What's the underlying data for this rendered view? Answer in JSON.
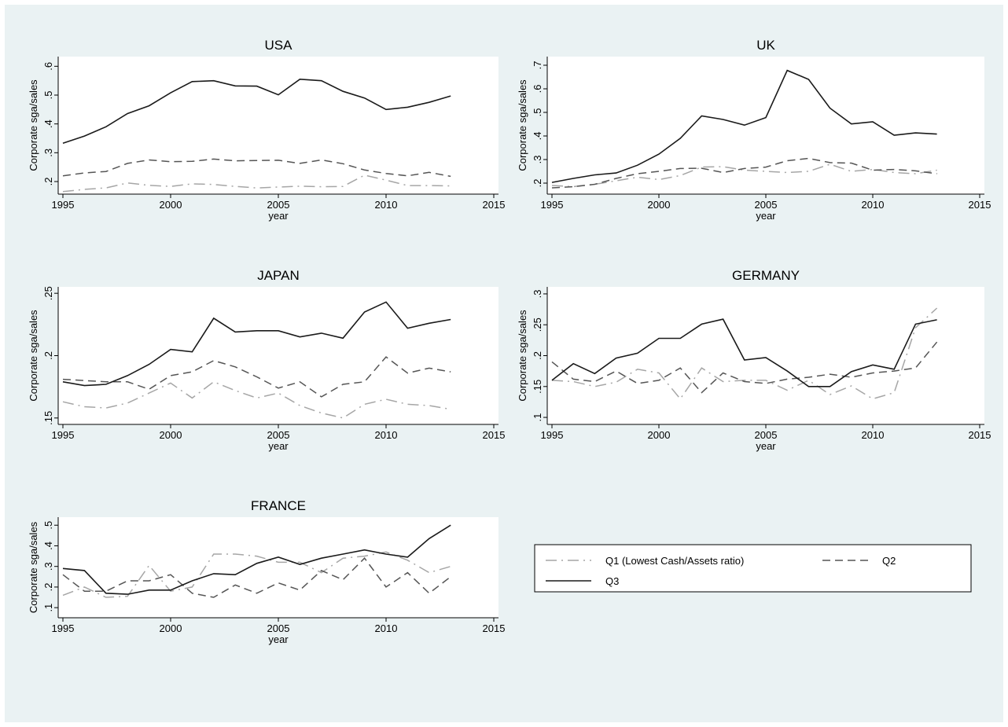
{
  "colors": {
    "background": "#eaf2f3",
    "plot_background": "#ffffff",
    "q1": "#a6a6a6",
    "q2": "#555555",
    "q3": "#1a1a1a"
  },
  "legend": {
    "placement": "bottom-right",
    "entries": [
      {
        "key": "q1",
        "label": "Q1 (Lowest Cash/Assets ratio)",
        "dash": "long-dash-dot",
        "color": "#a6a6a6"
      },
      {
        "key": "q2",
        "label": "Q2",
        "dash": "dash",
        "color": "#555555"
      },
      {
        "key": "q3",
        "label": "Q3",
        "dash": "solid",
        "color": "#1a1a1a"
      }
    ]
  },
  "chart_data": [
    {
      "type": "line",
      "title": "USA",
      "xlabel": "year",
      "ylabel": "Corporate sga/sales",
      "xlim": [
        1995,
        2015
      ],
      "xticks": [
        1995,
        2000,
        2005,
        2010,
        2015
      ],
      "ylim": [
        0.17,
        0.62
      ],
      "yticks": [
        0.2,
        0.3,
        0.4,
        0.5,
        0.6
      ],
      "ytick_labels": [
        ".2",
        ".3",
        ".4",
        ".5",
        ".6"
      ],
      "x": [
        1995,
        1996,
        1997,
        1998,
        1999,
        2000,
        2001,
        2002,
        2003,
        2004,
        2005,
        2006,
        2007,
        2008,
        2009,
        2010,
        2011,
        2012,
        2013
      ],
      "series": [
        {
          "key": "q1",
          "values": [
            0.165,
            0.173,
            0.178,
            0.195,
            0.187,
            0.183,
            0.192,
            0.19,
            0.183,
            0.178,
            0.181,
            0.184,
            0.182,
            0.183,
            0.222,
            0.205,
            0.186,
            0.186,
            0.185
          ]
        },
        {
          "key": "q2",
          "values": [
            0.22,
            0.23,
            0.235,
            0.263,
            0.275,
            0.269,
            0.27,
            0.278,
            0.272,
            0.273,
            0.274,
            0.263,
            0.275,
            0.262,
            0.24,
            0.228,
            0.22,
            0.232,
            0.218
          ]
        },
        {
          "key": "q3",
          "values": [
            0.333,
            0.358,
            0.39,
            0.436,
            0.463,
            0.508,
            0.547,
            0.55,
            0.532,
            0.531,
            0.501,
            0.555,
            0.55,
            0.513,
            0.49,
            0.45,
            0.458,
            0.475,
            0.497
          ]
        }
      ]
    },
    {
      "type": "line",
      "title": "UK",
      "xlabel": "year",
      "ylabel": "Corporate sga/sales",
      "xlim": [
        1995,
        2015
      ],
      "xticks": [
        1995,
        2000,
        2005,
        2010,
        2015
      ],
      "ylim": [
        0.17,
        0.72
      ],
      "yticks": [
        0.2,
        0.3,
        0.4,
        0.5,
        0.6,
        0.7
      ],
      "ytick_labels": [
        ".2",
        ".3",
        ".4",
        ".5",
        ".6",
        ".7"
      ],
      "x": [
        1995,
        1996,
        1997,
        1998,
        1999,
        2000,
        2001,
        2002,
        2003,
        2004,
        2005,
        2006,
        2007,
        2008,
        2009,
        2010,
        2011,
        2012,
        2013
      ],
      "series": [
        {
          "key": "q1",
          "values": [
            0.19,
            0.185,
            0.195,
            0.21,
            0.225,
            0.215,
            0.232,
            0.268,
            0.27,
            0.255,
            0.25,
            0.245,
            0.25,
            0.28,
            0.25,
            0.258,
            0.245,
            0.24,
            0.255
          ]
        },
        {
          "key": "q2",
          "values": [
            0.18,
            0.185,
            0.195,
            0.22,
            0.24,
            0.25,
            0.262,
            0.263,
            0.245,
            0.262,
            0.268,
            0.295,
            0.305,
            0.287,
            0.285,
            0.255,
            0.258,
            0.252,
            0.24
          ]
        },
        {
          "key": "q3",
          "values": [
            0.203,
            0.22,
            0.235,
            0.243,
            0.276,
            0.323,
            0.39,
            0.485,
            0.47,
            0.446,
            0.478,
            0.678,
            0.64,
            0.518,
            0.451,
            0.46,
            0.403,
            0.413,
            0.408
          ]
        }
      ]
    },
    {
      "type": "line",
      "title": "JAPAN",
      "xlabel": "year",
      "ylabel": "Corporate sga/sales",
      "xlim": [
        1995,
        2015
      ],
      "xticks": [
        1995,
        2000,
        2005,
        2010,
        2015
      ],
      "ylim": [
        0.148,
        0.252
      ],
      "yticks": [
        0.15,
        0.2,
        0.25
      ],
      "ytick_labels": [
        ".15",
        ".2",
        ".25"
      ],
      "x": [
        1995,
        1996,
        1997,
        1998,
        1999,
        2000,
        2001,
        2002,
        2003,
        2004,
        2005,
        2006,
        2007,
        2008,
        2009,
        2010,
        2011,
        2012,
        2013
      ],
      "series": [
        {
          "key": "q1",
          "values": [
            0.163,
            0.159,
            0.158,
            0.162,
            0.17,
            0.178,
            0.166,
            0.179,
            0.172,
            0.166,
            0.17,
            0.16,
            0.154,
            0.15,
            0.161,
            0.165,
            0.161,
            0.16,
            0.157
          ]
        },
        {
          "key": "q2",
          "values": [
            0.181,
            0.18,
            0.179,
            0.179,
            0.173,
            0.184,
            0.187,
            0.196,
            0.191,
            0.183,
            0.174,
            0.179,
            0.167,
            0.177,
            0.179,
            0.199,
            0.186,
            0.19,
            0.187
          ]
        },
        {
          "key": "q3",
          "values": [
            0.179,
            0.176,
            0.177,
            0.184,
            0.193,
            0.205,
            0.203,
            0.23,
            0.219,
            0.22,
            0.22,
            0.215,
            0.218,
            0.214,
            0.235,
            0.243,
            0.222,
            0.226,
            0.229
          ]
        }
      ]
    },
    {
      "type": "line",
      "title": "GERMANY",
      "xlabel": "year",
      "ylabel": "Corporate sga/sales",
      "xlim": [
        1995,
        2015
      ],
      "xticks": [
        1995,
        2000,
        2005,
        2010,
        2015
      ],
      "ylim": [
        0.095,
        0.305
      ],
      "yticks": [
        0.1,
        0.15,
        0.2,
        0.25,
        0.3
      ],
      "ytick_labels": [
        ".1",
        ".15",
        ".2",
        ".25",
        ".3"
      ],
      "x": [
        1995,
        1996,
        1997,
        1998,
        1999,
        2000,
        2001,
        2002,
        2003,
        2004,
        2005,
        2006,
        2007,
        2008,
        2009,
        2010,
        2011,
        2012,
        2013
      ],
      "series": [
        {
          "key": "q1",
          "values": [
            0.16,
            0.158,
            0.15,
            0.157,
            0.178,
            0.172,
            0.13,
            0.18,
            0.158,
            0.16,
            0.16,
            0.144,
            0.16,
            0.137,
            0.151,
            0.13,
            0.14,
            0.245,
            0.277
          ]
        },
        {
          "key": "q2",
          "values": [
            0.19,
            0.162,
            0.158,
            0.175,
            0.155,
            0.16,
            0.18,
            0.14,
            0.172,
            0.158,
            0.155,
            0.162,
            0.165,
            0.17,
            0.165,
            0.172,
            0.175,
            0.18,
            0.222
          ]
        },
        {
          "key": "q3",
          "values": [
            0.16,
            0.187,
            0.171,
            0.196,
            0.204,
            0.228,
            0.228,
            0.251,
            0.259,
            0.193,
            0.197,
            0.175,
            0.15,
            0.15,
            0.174,
            0.185,
            0.178,
            0.251,
            0.258
          ]
        }
      ]
    },
    {
      "type": "line",
      "title": "FRANCE",
      "xlabel": "year",
      "ylabel": "Corporate sga/sales",
      "xlim": [
        1995,
        2015
      ],
      "xticks": [
        1995,
        2000,
        2005,
        2010,
        2015
      ],
      "ylim": [
        0.07,
        0.52
      ],
      "yticks": [
        0.1,
        0.2,
        0.3,
        0.4,
        0.5
      ],
      "ytick_labels": [
        ".1",
        ".2",
        ".3",
        ".4",
        ".5"
      ],
      "x": [
        1995,
        1996,
        1997,
        1998,
        1999,
        2000,
        2001,
        2002,
        2003,
        2004,
        2005,
        2006,
        2007,
        2008,
        2009,
        2010,
        2011,
        2012,
        2013
      ],
      "series": [
        {
          "key": "q1",
          "values": [
            0.16,
            0.2,
            0.15,
            0.155,
            0.305,
            0.18,
            0.2,
            0.36,
            0.36,
            0.35,
            0.32,
            0.32,
            0.27,
            0.34,
            0.35,
            0.37,
            0.33,
            0.27,
            0.3
          ]
        },
        {
          "key": "q2",
          "values": [
            0.26,
            0.18,
            0.18,
            0.23,
            0.23,
            0.26,
            0.17,
            0.15,
            0.21,
            0.17,
            0.22,
            0.185,
            0.28,
            0.235,
            0.34,
            0.2,
            0.27,
            0.17,
            0.25
          ]
        },
        {
          "key": "q3",
          "values": [
            0.29,
            0.28,
            0.17,
            0.165,
            0.185,
            0.185,
            0.23,
            0.265,
            0.26,
            0.315,
            0.345,
            0.31,
            0.34,
            0.36,
            0.38,
            0.36,
            0.345,
            0.435,
            0.5
          ]
        }
      ]
    }
  ]
}
